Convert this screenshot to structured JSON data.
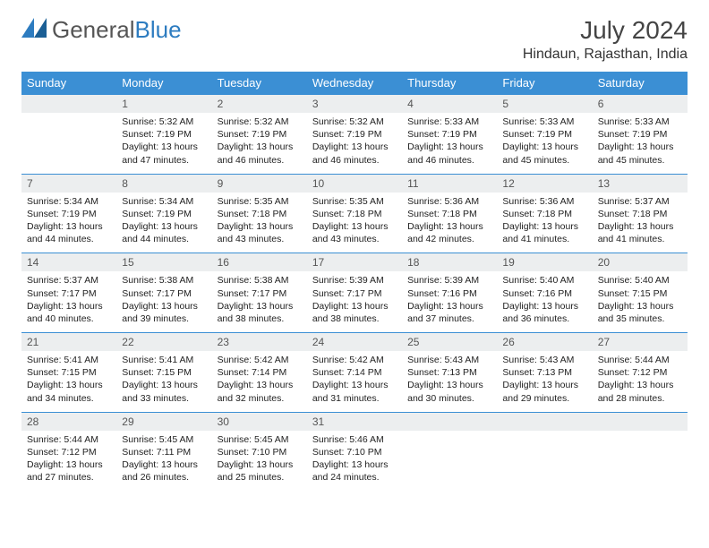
{
  "logo_text_1": "General",
  "logo_text_2": "Blue",
  "logo_color_gray": "#6a6a6a",
  "logo_color_blue": "#2d7cc0",
  "header_bg": "#3b8fd4",
  "daynum_bg": "#eceeef",
  "month_title": "July 2024",
  "location": "Hindaun, Rajasthan, India",
  "weekdays": [
    "Sunday",
    "Monday",
    "Tuesday",
    "Wednesday",
    "Thursday",
    "Friday",
    "Saturday"
  ],
  "first_weekday": 1,
  "days": [
    {
      "n": 1,
      "sunrise": "5:32 AM",
      "sunset": "7:19 PM",
      "day_h": 13,
      "day_m": 47
    },
    {
      "n": 2,
      "sunrise": "5:32 AM",
      "sunset": "7:19 PM",
      "day_h": 13,
      "day_m": 46
    },
    {
      "n": 3,
      "sunrise": "5:32 AM",
      "sunset": "7:19 PM",
      "day_h": 13,
      "day_m": 46
    },
    {
      "n": 4,
      "sunrise": "5:33 AM",
      "sunset": "7:19 PM",
      "day_h": 13,
      "day_m": 46
    },
    {
      "n": 5,
      "sunrise": "5:33 AM",
      "sunset": "7:19 PM",
      "day_h": 13,
      "day_m": 45
    },
    {
      "n": 6,
      "sunrise": "5:33 AM",
      "sunset": "7:19 PM",
      "day_h": 13,
      "day_m": 45
    },
    {
      "n": 7,
      "sunrise": "5:34 AM",
      "sunset": "7:19 PM",
      "day_h": 13,
      "day_m": 44
    },
    {
      "n": 8,
      "sunrise": "5:34 AM",
      "sunset": "7:19 PM",
      "day_h": 13,
      "day_m": 44
    },
    {
      "n": 9,
      "sunrise": "5:35 AM",
      "sunset": "7:18 PM",
      "day_h": 13,
      "day_m": 43
    },
    {
      "n": 10,
      "sunrise": "5:35 AM",
      "sunset": "7:18 PM",
      "day_h": 13,
      "day_m": 43
    },
    {
      "n": 11,
      "sunrise": "5:36 AM",
      "sunset": "7:18 PM",
      "day_h": 13,
      "day_m": 42
    },
    {
      "n": 12,
      "sunrise": "5:36 AM",
      "sunset": "7:18 PM",
      "day_h": 13,
      "day_m": 41
    },
    {
      "n": 13,
      "sunrise": "5:37 AM",
      "sunset": "7:18 PM",
      "day_h": 13,
      "day_m": 41
    },
    {
      "n": 14,
      "sunrise": "5:37 AM",
      "sunset": "7:17 PM",
      "day_h": 13,
      "day_m": 40
    },
    {
      "n": 15,
      "sunrise": "5:38 AM",
      "sunset": "7:17 PM",
      "day_h": 13,
      "day_m": 39
    },
    {
      "n": 16,
      "sunrise": "5:38 AM",
      "sunset": "7:17 PM",
      "day_h": 13,
      "day_m": 38
    },
    {
      "n": 17,
      "sunrise": "5:39 AM",
      "sunset": "7:17 PM",
      "day_h": 13,
      "day_m": 38
    },
    {
      "n": 18,
      "sunrise": "5:39 AM",
      "sunset": "7:16 PM",
      "day_h": 13,
      "day_m": 37
    },
    {
      "n": 19,
      "sunrise": "5:40 AM",
      "sunset": "7:16 PM",
      "day_h": 13,
      "day_m": 36
    },
    {
      "n": 20,
      "sunrise": "5:40 AM",
      "sunset": "7:15 PM",
      "day_h": 13,
      "day_m": 35
    },
    {
      "n": 21,
      "sunrise": "5:41 AM",
      "sunset": "7:15 PM",
      "day_h": 13,
      "day_m": 34
    },
    {
      "n": 22,
      "sunrise": "5:41 AM",
      "sunset": "7:15 PM",
      "day_h": 13,
      "day_m": 33
    },
    {
      "n": 23,
      "sunrise": "5:42 AM",
      "sunset": "7:14 PM",
      "day_h": 13,
      "day_m": 32
    },
    {
      "n": 24,
      "sunrise": "5:42 AM",
      "sunset": "7:14 PM",
      "day_h": 13,
      "day_m": 31
    },
    {
      "n": 25,
      "sunrise": "5:43 AM",
      "sunset": "7:13 PM",
      "day_h": 13,
      "day_m": 30
    },
    {
      "n": 26,
      "sunrise": "5:43 AM",
      "sunset": "7:13 PM",
      "day_h": 13,
      "day_m": 29
    },
    {
      "n": 27,
      "sunrise": "5:44 AM",
      "sunset": "7:12 PM",
      "day_h": 13,
      "day_m": 28
    },
    {
      "n": 28,
      "sunrise": "5:44 AM",
      "sunset": "7:12 PM",
      "day_h": 13,
      "day_m": 27
    },
    {
      "n": 29,
      "sunrise": "5:45 AM",
      "sunset": "7:11 PM",
      "day_h": 13,
      "day_m": 26
    },
    {
      "n": 30,
      "sunrise": "5:45 AM",
      "sunset": "7:10 PM",
      "day_h": 13,
      "day_m": 25
    },
    {
      "n": 31,
      "sunrise": "5:46 AM",
      "sunset": "7:10 PM",
      "day_h": 13,
      "day_m": 24
    }
  ],
  "labels": {
    "sunrise": "Sunrise:",
    "sunset": "Sunset:",
    "daylight": "Daylight:",
    "hours": "hours",
    "and": "and",
    "minutes": "minutes."
  }
}
